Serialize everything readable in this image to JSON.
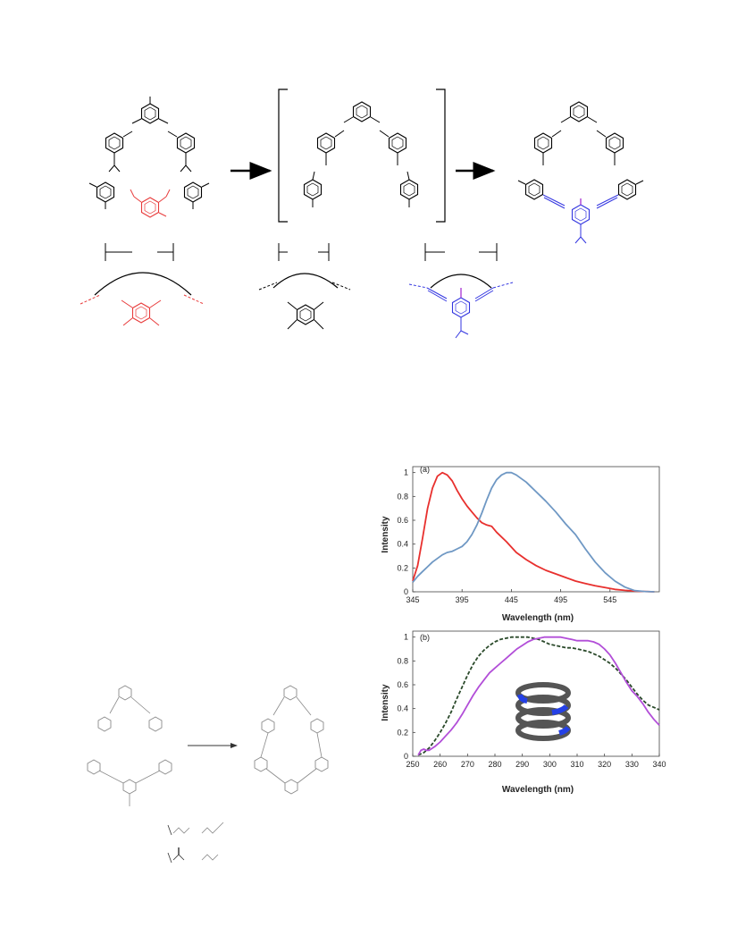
{
  "chart_data": [
    {
      "type": "line",
      "panel_label": "(a)",
      "xlabel": "Wavelength (nm)",
      "ylabel": "Intensity",
      "xlim": [
        345,
        595
      ],
      "ylim": [
        0,
        1.05
      ],
      "xticks": [
        345,
        395,
        445,
        495,
        545
      ],
      "yticks": [
        0,
        0.2,
        0.4,
        0.6,
        0.8,
        1
      ],
      "ytick_labels": [
        "0",
        "0.2",
        "0.4",
        "0.6",
        "0.8",
        "1"
      ],
      "grid": false,
      "series": [
        {
          "color": "#e8302e",
          "x": [
            345,
            350,
            355,
            360,
            365,
            370,
            375,
            380,
            385,
            390,
            395,
            400,
            405,
            410,
            415,
            420,
            425,
            430,
            440,
            450,
            460,
            470,
            480,
            490,
            500,
            510,
            520,
            530,
            540,
            550,
            560,
            570,
            580,
            590
          ],
          "y": [
            0.09,
            0.22,
            0.45,
            0.7,
            0.87,
            0.97,
            1.0,
            0.98,
            0.93,
            0.85,
            0.78,
            0.72,
            0.67,
            0.62,
            0.58,
            0.56,
            0.55,
            0.5,
            0.42,
            0.33,
            0.27,
            0.22,
            0.18,
            0.15,
            0.12,
            0.09,
            0.07,
            0.05,
            0.035,
            0.02,
            0.012,
            0.006,
            0.003,
            0.0
          ]
        },
        {
          "color": "#6f98c4",
          "x": [
            345,
            350,
            355,
            360,
            365,
            370,
            375,
            380,
            385,
            390,
            395,
            400,
            405,
            410,
            415,
            420,
            425,
            430,
            435,
            440,
            445,
            450,
            455,
            460,
            465,
            470,
            475,
            480,
            490,
            500,
            510,
            520,
            530,
            540,
            550,
            560,
            570,
            580,
            590
          ],
          "y": [
            0.08,
            0.13,
            0.17,
            0.21,
            0.25,
            0.28,
            0.31,
            0.33,
            0.34,
            0.36,
            0.38,
            0.42,
            0.48,
            0.56,
            0.66,
            0.77,
            0.87,
            0.94,
            0.98,
            1.0,
            1.0,
            0.98,
            0.95,
            0.92,
            0.88,
            0.84,
            0.8,
            0.76,
            0.67,
            0.57,
            0.48,
            0.36,
            0.25,
            0.16,
            0.09,
            0.04,
            0.01,
            0.003,
            0.0
          ]
        }
      ]
    },
    {
      "type": "line",
      "panel_label": "(b)",
      "xlabel": "Wavelength (nm)",
      "ylabel": "Intensity",
      "xlim": [
        250,
        340
      ],
      "ylim": [
        0,
        1.05
      ],
      "xticks": [
        250,
        260,
        270,
        280,
        290,
        300,
        310,
        320,
        330,
        340
      ],
      "yticks": [
        0,
        0.2,
        0.4,
        0.6,
        0.8,
        1
      ],
      "ytick_labels": [
        "0",
        "0.2",
        "0.4",
        "0.6",
        "0.8",
        "1"
      ],
      "grid": false,
      "series": [
        {
          "color": "#2b4a2b",
          "dashed": true,
          "x": [
            252,
            254,
            256,
            258,
            260,
            262,
            264,
            266,
            268,
            270,
            272,
            274,
            276,
            278,
            280,
            282,
            284,
            286,
            288,
            290,
            292,
            294,
            296,
            298,
            300,
            302,
            304,
            306,
            308,
            310,
            312,
            314,
            316,
            318,
            320,
            322,
            324,
            326,
            328,
            330,
            332,
            334,
            336,
            338,
            340
          ],
          "y": [
            0.01,
            0.03,
            0.07,
            0.13,
            0.2,
            0.28,
            0.37,
            0.48,
            0.58,
            0.68,
            0.77,
            0.84,
            0.89,
            0.93,
            0.96,
            0.98,
            0.99,
            1.0,
            1.0,
            1.0,
            1.0,
            0.99,
            0.98,
            0.96,
            0.94,
            0.93,
            0.92,
            0.91,
            0.91,
            0.9,
            0.89,
            0.88,
            0.86,
            0.84,
            0.81,
            0.78,
            0.74,
            0.69,
            0.64,
            0.58,
            0.52,
            0.47,
            0.43,
            0.41,
            0.39
          ]
        },
        {
          "color": "#b24ed8",
          "x": [
            252,
            253,
            254,
            255,
            256,
            258,
            260,
            262,
            264,
            266,
            268,
            270,
            272,
            274,
            276,
            278,
            280,
            282,
            284,
            286,
            288,
            290,
            292,
            294,
            296,
            298,
            300,
            302,
            304,
            306,
            308,
            310,
            312,
            314,
            316,
            318,
            320,
            322,
            324,
            326,
            328,
            330,
            332,
            334,
            336,
            338,
            340
          ],
          "y": [
            0.01,
            0.05,
            0.06,
            0.05,
            0.05,
            0.08,
            0.12,
            0.17,
            0.22,
            0.28,
            0.35,
            0.43,
            0.51,
            0.58,
            0.64,
            0.7,
            0.74,
            0.78,
            0.82,
            0.86,
            0.9,
            0.93,
            0.96,
            0.98,
            0.99,
            1.0,
            1.0,
            1.0,
            1.0,
            0.99,
            0.98,
            0.97,
            0.97,
            0.97,
            0.96,
            0.94,
            0.9,
            0.85,
            0.78,
            0.7,
            0.62,
            0.55,
            0.5,
            0.44,
            0.37,
            0.31,
            0.26
          ]
        }
      ]
    }
  ],
  "colors": {
    "scheme_red": "#e83b3b",
    "scheme_blue": "#3336e0",
    "scheme_black": "#000000",
    "scheme_gray": "#8a8a8a",
    "helix_gray": "#555555",
    "helix_blue": "#2440e6"
  },
  "icons": {
    "arrow_1": "right-arrow-icon",
    "arrow_2": "right-arrow-icon",
    "arrow_3": "right-arrow-icon",
    "helix": "helix-icon"
  },
  "scheme": {
    "bottom_labels": [
      "I",
      "I",
      "I",
      "I",
      "I",
      "I",
      "I"
    ]
  }
}
